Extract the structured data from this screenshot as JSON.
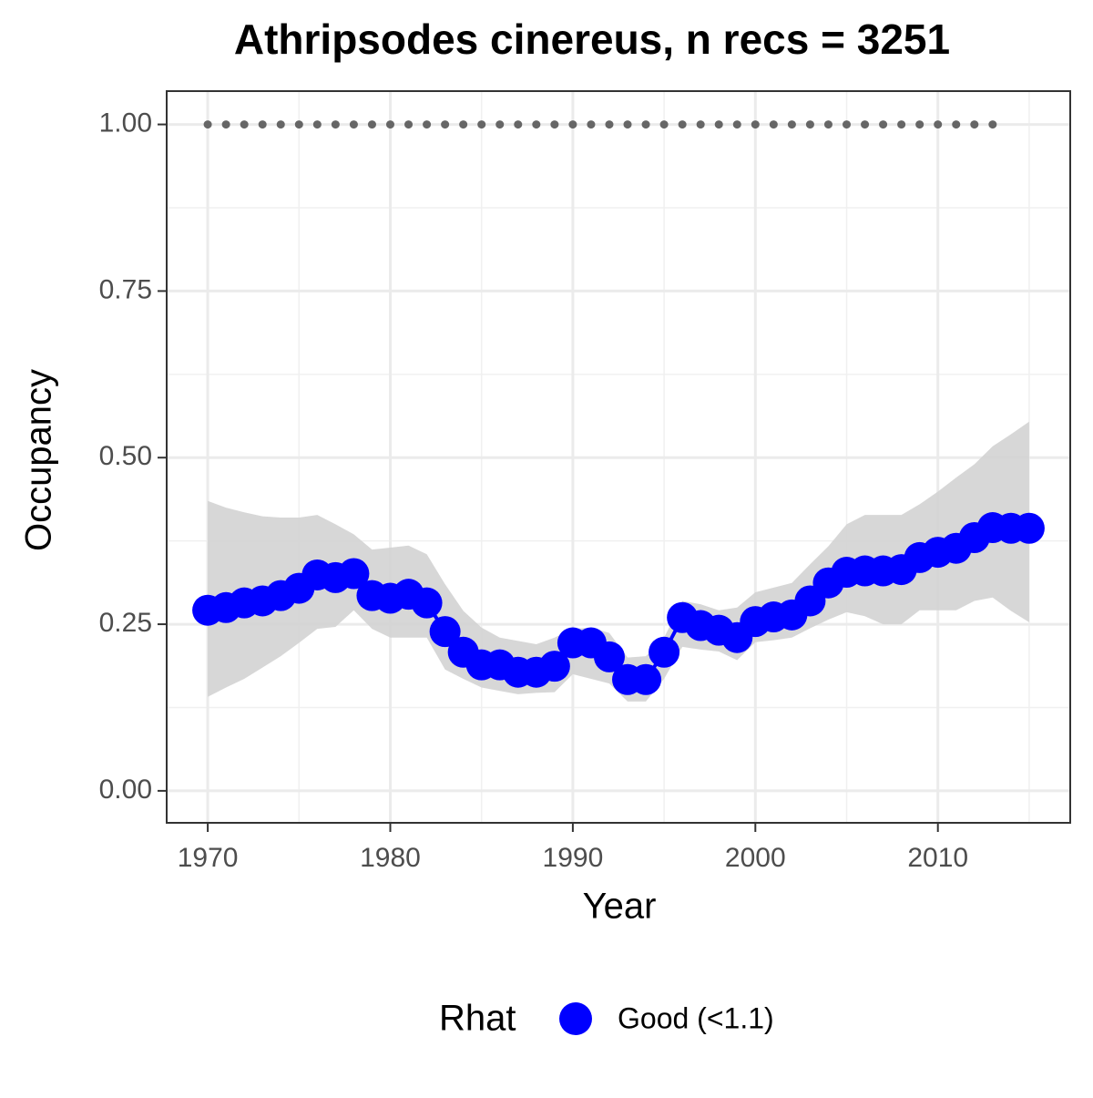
{
  "chart_data": {
    "type": "line-ribbon",
    "title": "Athripsodes cinereus, n recs = 3251",
    "x_label": "Year",
    "y_label": "Occupancy",
    "legend_title": "Rhat",
    "legend_position": "bottom",
    "x": [
      1970,
      1971,
      1972,
      1973,
      1974,
      1975,
      1976,
      1977,
      1978,
      1979,
      1980,
      1981,
      1982,
      1983,
      1984,
      1985,
      1986,
      1987,
      1988,
      1989,
      1990,
      1991,
      1992,
      1993,
      1994,
      1995,
      1996,
      1997,
      1998,
      1999,
      2000,
      2001,
      2002,
      2003,
      2004,
      2005,
      2006,
      2007,
      2008,
      2009,
      2010,
      2011,
      2012,
      2013,
      2014,
      2015
    ],
    "series": [
      {
        "name": "Good (<1.1)",
        "color": "#0000ff",
        "ribbon_color": "#d3d3d3",
        "values": [
          0.271,
          0.275,
          0.282,
          0.285,
          0.293,
          0.304,
          0.324,
          0.32,
          0.326,
          0.293,
          0.289,
          0.295,
          0.282,
          0.239,
          0.208,
          0.189,
          0.189,
          0.178,
          0.178,
          0.187,
          0.222,
          0.222,
          0.201,
          0.167,
          0.167,
          0.208,
          0.26,
          0.248,
          0.241,
          0.23,
          0.254,
          0.261,
          0.264,
          0.285,
          0.312,
          0.328,
          0.33,
          0.33,
          0.332,
          0.35,
          0.358,
          0.364,
          0.38,
          0.395,
          0.394,
          0.394
        ],
        "upper": [
          0.435,
          0.425,
          0.418,
          0.412,
          0.41,
          0.41,
          0.414,
          0.4,
          0.385,
          0.362,
          0.365,
          0.368,
          0.355,
          0.31,
          0.27,
          0.245,
          0.23,
          0.225,
          0.22,
          0.23,
          0.243,
          0.245,
          0.237,
          0.2,
          0.202,
          0.23,
          0.285,
          0.28,
          0.271,
          0.275,
          0.298,
          0.305,
          0.312,
          0.34,
          0.367,
          0.4,
          0.414,
          0.414,
          0.414,
          0.43,
          0.449,
          0.47,
          0.49,
          0.517,
          0.535,
          0.554
        ],
        "lower": [
          0.141,
          0.155,
          0.168,
          0.185,
          0.202,
          0.222,
          0.243,
          0.246,
          0.271,
          0.243,
          0.23,
          0.23,
          0.23,
          0.182,
          0.168,
          0.155,
          0.15,
          0.145,
          0.147,
          0.148,
          0.175,
          0.168,
          0.161,
          0.134,
          0.134,
          0.168,
          0.216,
          0.212,
          0.209,
          0.196,
          0.223,
          0.226,
          0.23,
          0.244,
          0.257,
          0.268,
          0.262,
          0.25,
          0.25,
          0.271,
          0.271,
          0.271,
          0.285,
          0.29,
          0.27,
          0.253
        ]
      },
      {
        "color": "#666666",
        "x": [
          1970,
          1971,
          1972,
          1973,
          1974,
          1975,
          1976,
          1977,
          1978,
          1979,
          1980,
          1981,
          1982,
          1983,
          1984,
          1985,
          1986,
          1987,
          1988,
          1989,
          1990,
          1991,
          1992,
          1993,
          1994,
          1995,
          1996,
          1997,
          1998,
          1999,
          2000,
          2001,
          2002,
          2003,
          2004,
          2005,
          2006,
          2007,
          2008,
          2009,
          2010,
          2011,
          2012,
          2013
        ],
        "values": [
          1,
          1,
          1,
          1,
          1,
          1,
          1,
          1,
          1,
          1,
          1,
          1,
          1,
          1,
          1,
          1,
          1,
          1,
          1,
          1,
          1,
          1,
          1,
          1,
          1,
          1,
          1,
          1,
          1,
          1,
          1,
          1,
          1,
          1,
          1,
          1,
          1,
          1,
          1,
          1,
          1,
          1,
          1,
          1
        ]
      }
    ],
    "xlim": [
      1967.75,
      2017.25
    ],
    "ylim": [
      -0.048,
      1.05
    ],
    "xticks": [
      1970,
      1980,
      1990,
      2000,
      2010
    ],
    "yticks": [
      {
        "value": 0,
        "label": "0.00"
      },
      {
        "value": 0.25,
        "label": "0.25"
      },
      {
        "value": 0.5,
        "label": "0.50"
      },
      {
        "value": 0.75,
        "label": "0.75"
      },
      {
        "value": 1,
        "label": "1.00"
      }
    ],
    "x_minor_grid": [
      1975,
      1985,
      1995,
      2005,
      2015
    ],
    "y_minor_grid": [
      0.125,
      0.375,
      0.625,
      0.875
    ],
    "grid": true
  }
}
